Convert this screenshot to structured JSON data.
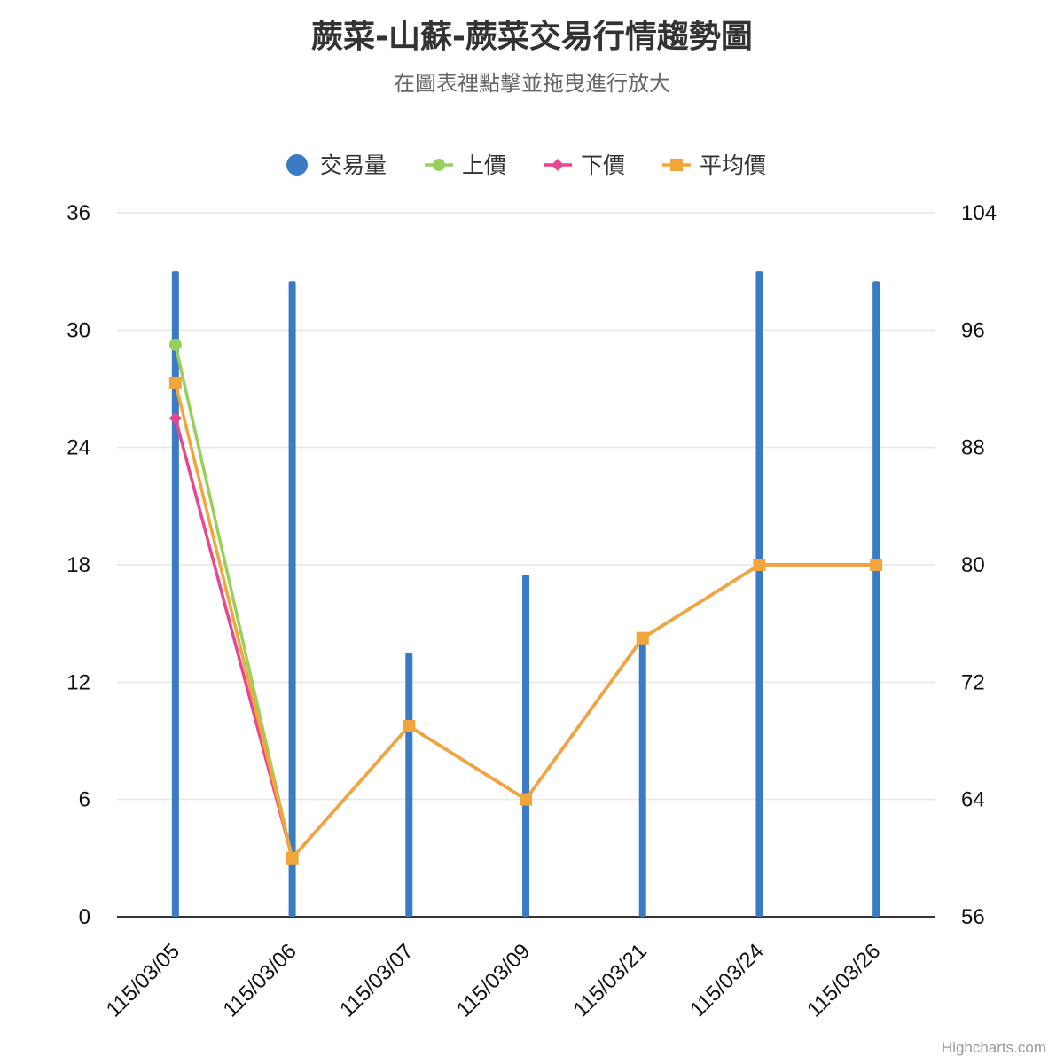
{
  "title": "蕨菜-山蘇-蕨菜交易行情趨勢圖",
  "subtitle": "在圖表裡點擊並拖曳進行放大",
  "credits": "Highcharts.com",
  "chart_data": {
    "type": "bar+line",
    "categories": [
      "115/03/05",
      "115/03/06",
      "115/03/07",
      "115/03/09",
      "115/03/21",
      "115/03/24",
      "115/03/26"
    ],
    "y_left": {
      "min": 0,
      "max": 36,
      "ticks": [
        "0",
        "6",
        "12",
        "18",
        "24",
        "30",
        "36"
      ]
    },
    "y_right": {
      "min": 56,
      "max": 104,
      "ticks": [
        "56",
        "64",
        "72",
        "80",
        "88",
        "96",
        "104"
      ]
    },
    "series": [
      {
        "name": "交易量",
        "type": "bar",
        "axis": "left",
        "color": "#3a7bc4",
        "values": [
          33,
          32.5,
          13.5,
          17.5,
          14.5,
          33,
          32.5
        ]
      },
      {
        "name": "上價",
        "type": "line",
        "axis": "right",
        "color": "#99d05c",
        "marker": "circle",
        "values": [
          95,
          60,
          69,
          64,
          75,
          80,
          80
        ]
      },
      {
        "name": "下價",
        "type": "line",
        "axis": "right",
        "color": "#e8468e",
        "marker": "diamond",
        "values": [
          90,
          60,
          69,
          64,
          75,
          80,
          80
        ]
      },
      {
        "name": "平均價",
        "type": "line",
        "axis": "right",
        "color": "#f2a53a",
        "marker": "square",
        "values": [
          92.4,
          60,
          69,
          64,
          75,
          80,
          80
        ]
      }
    ],
    "legend_position": "top-center",
    "grid": true
  }
}
